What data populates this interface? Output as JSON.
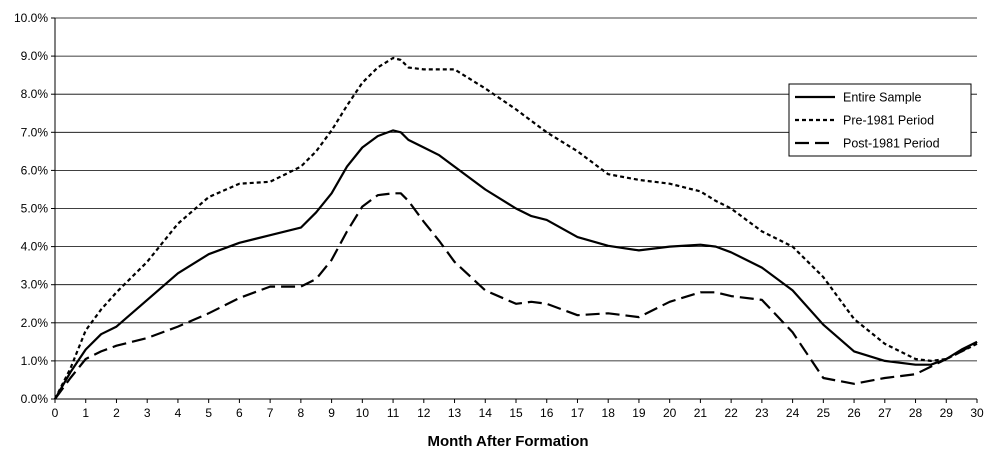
{
  "chart_data": {
    "type": "line",
    "title": "",
    "xlabel": "Month After Formation",
    "ylabel": "",
    "xlim": [
      0,
      30
    ],
    "ylim": [
      0,
      0.1
    ],
    "grid": "horizontal",
    "legend_position": "top-right",
    "x_ticks": [
      "0",
      "1",
      "2",
      "3",
      "4",
      "5",
      "6",
      "7",
      "8",
      "9",
      "10",
      "11",
      "12",
      "13",
      "14",
      "15",
      "16",
      "17",
      "18",
      "19",
      "20",
      "21",
      "22",
      "23",
      "24",
      "25",
      "26",
      "27",
      "28",
      "29",
      "30"
    ],
    "y_ticks": [
      "0.0%",
      "1.0%",
      "2.0%",
      "3.0%",
      "4.0%",
      "5.0%",
      "6.0%",
      "7.0%",
      "8.0%",
      "9.0%",
      "10.0%"
    ],
    "x": [
      0,
      0.5,
      1,
      1.5,
      2,
      3,
      4,
      5,
      6,
      7,
      8,
      8.5,
      9,
      9.5,
      10,
      10.5,
      11,
      11.25,
      11.5,
      12,
      12.5,
      13,
      14,
      15,
      15.5,
      16,
      17,
      18,
      19,
      20,
      21,
      21.5,
      22,
      23,
      24,
      25,
      26,
      27,
      28,
      28.5,
      29,
      29.5,
      30
    ],
    "series": [
      {
        "name": "Entire Sample",
        "style": "solid",
        "values": [
          0,
          0.007,
          0.013,
          0.017,
          0.019,
          0.026,
          0.033,
          0.038,
          0.041,
          0.043,
          0.045,
          0.049,
          0.054,
          0.061,
          0.066,
          0.069,
          0.0705,
          0.07,
          0.068,
          0.066,
          0.064,
          0.061,
          0.055,
          0.05,
          0.048,
          0.047,
          0.0425,
          0.0402,
          0.039,
          0.04,
          0.0405,
          0.04,
          0.0385,
          0.0345,
          0.0285,
          0.0195,
          0.0125,
          0.01,
          0.009,
          0.009,
          0.0105,
          0.013,
          0.015
        ]
      },
      {
        "name": "Pre-1981 Period",
        "style": "dotted",
        "values": [
          0,
          0.008,
          0.018,
          0.0235,
          0.028,
          0.036,
          0.046,
          0.053,
          0.0565,
          0.057,
          0.061,
          0.065,
          0.0705,
          0.077,
          0.083,
          0.087,
          0.0895,
          0.089,
          0.087,
          0.0865,
          0.0865,
          0.0865,
          0.0815,
          0.076,
          0.073,
          0.07,
          0.065,
          0.059,
          0.0575,
          0.0565,
          0.0545,
          0.052,
          0.05,
          0.044,
          0.04,
          0.032,
          0.021,
          0.0145,
          0.0105,
          0.01,
          0.0105,
          0.0125,
          0.0145
        ]
      },
      {
        "name": "Post-1981 Period",
        "style": "dashed",
        "values": [
          0,
          0.0055,
          0.0105,
          0.0125,
          0.014,
          0.016,
          0.019,
          0.0225,
          0.0265,
          0.0295,
          0.0295,
          0.0315,
          0.0365,
          0.044,
          0.0505,
          0.0535,
          0.054,
          0.054,
          0.052,
          0.0465,
          0.0415,
          0.036,
          0.0285,
          0.025,
          0.0255,
          0.025,
          0.022,
          0.0225,
          0.0215,
          0.0255,
          0.028,
          0.028,
          0.027,
          0.026,
          0.0175,
          0.0055,
          0.004,
          0.0055,
          0.0065,
          0.0085,
          0.0105,
          0.0125,
          0.015
        ]
      }
    ]
  }
}
